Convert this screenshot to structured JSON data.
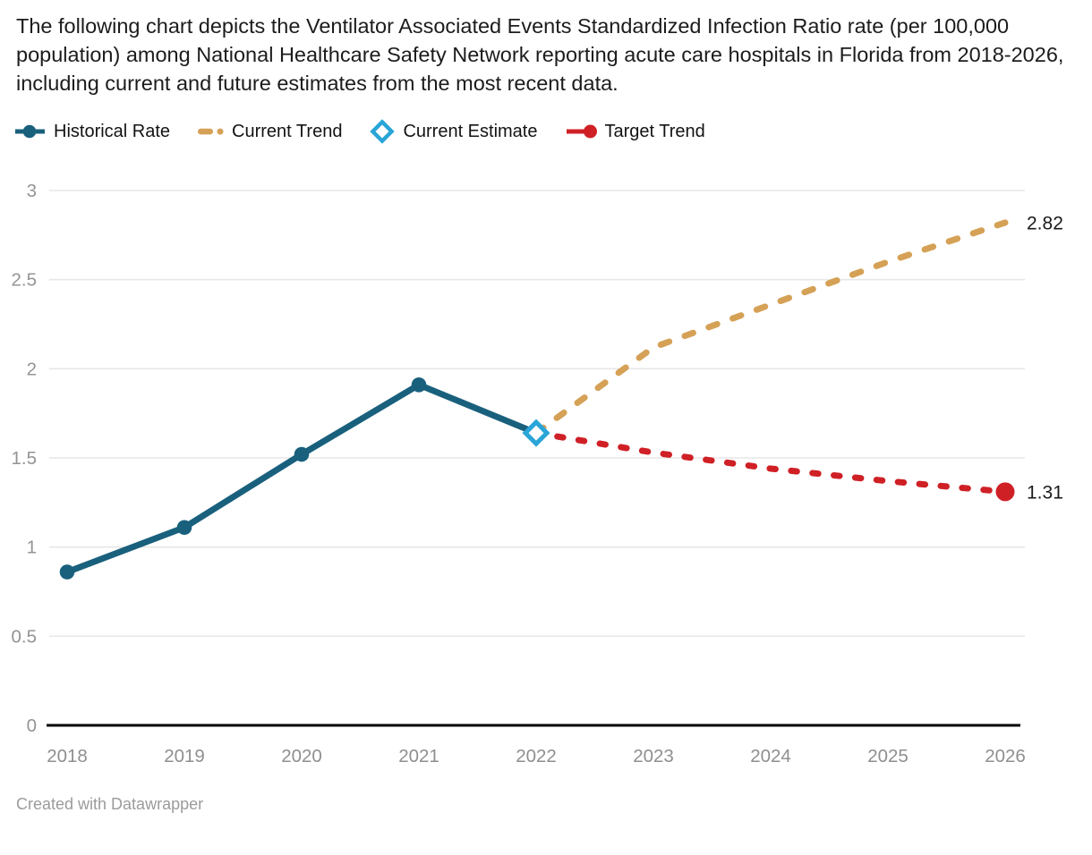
{
  "header": {
    "title": "The following chart depicts the Ventilator Associated Events Standardized Infection Ratio rate (per 100,000 population) among National Healthcare Safety Network reporting acute care hospitals in Florida from 2018-2026, including current and future estimates from the most recent data."
  },
  "legend": {
    "items": [
      {
        "label": "Historical Rate",
        "color": "#19607d",
        "marker": "solid-line-with-dot"
      },
      {
        "label": "Current Trend",
        "color": "#d5a156",
        "marker": "dashed-line"
      },
      {
        "label": "Current Estimate",
        "color": "#2aa5d8",
        "marker": "diamond-outline"
      },
      {
        "label": "Target Trend",
        "color": "#cf2026",
        "marker": "line-with-dot"
      }
    ]
  },
  "chart_data": {
    "type": "line",
    "title": "Ventilator Associated Events Standardized Infection Ratio, Florida 2018-2026",
    "xlabel": "",
    "ylabel": "",
    "x": [
      2018,
      2019,
      2020,
      2021,
      2022,
      2023,
      2024,
      2025,
      2026
    ],
    "x_tick_labels": [
      "2018",
      "2019",
      "2020",
      "2021",
      "2022",
      "2023",
      "2024",
      "2025",
      "2026"
    ],
    "y_ticks": [
      0,
      0.5,
      1,
      1.5,
      2,
      2.5,
      3
    ],
    "y_tick_labels": [
      "0",
      "0.5",
      "1",
      "1.5",
      "2",
      "2.5",
      "3"
    ],
    "ylim": [
      0,
      3
    ],
    "grid": "horizontal",
    "legend_position": "top",
    "colors": {
      "historical": "#19607d",
      "current_trend": "#d5a156",
      "current_estimate": "#2aa5d8",
      "target_trend": "#cf2026",
      "gridline": "#e7e7e7",
      "axis": "#000000",
      "tick_text": "#949494",
      "label_text": "#1a1a1a"
    },
    "series": [
      {
        "name": "Historical Rate",
        "style": "solid",
        "marker": "circle",
        "color": "#19607d",
        "x": [
          2018,
          2019,
          2020,
          2021,
          2022
        ],
        "values": [
          0.86,
          1.11,
          1.52,
          1.91,
          1.64
        ],
        "marker_x": [
          2018,
          2019,
          2020,
          2021
        ]
      },
      {
        "name": "Current Trend",
        "style": "dashed",
        "color": "#d5a156",
        "x": [
          2022,
          2023,
          2024,
          2025,
          2026
        ],
        "values": [
          1.64,
          2.12,
          2.36,
          2.6,
          2.82
        ],
        "end_label": "2.82"
      },
      {
        "name": "Target Trend",
        "style": "dashed",
        "color": "#cf2026",
        "x": [
          2022,
          2023,
          2024,
          2025,
          2026
        ],
        "values": [
          1.64,
          1.53,
          1.44,
          1.37,
          1.31
        ],
        "end_label": "1.31",
        "end_marker": "circle"
      },
      {
        "name": "Current Estimate",
        "style": "marker-only",
        "marker": "diamond-outline",
        "color": "#2aa5d8",
        "x": [
          2022
        ],
        "values": [
          1.64
        ]
      }
    ]
  },
  "footer": {
    "credit": "Created with Datawrapper"
  }
}
